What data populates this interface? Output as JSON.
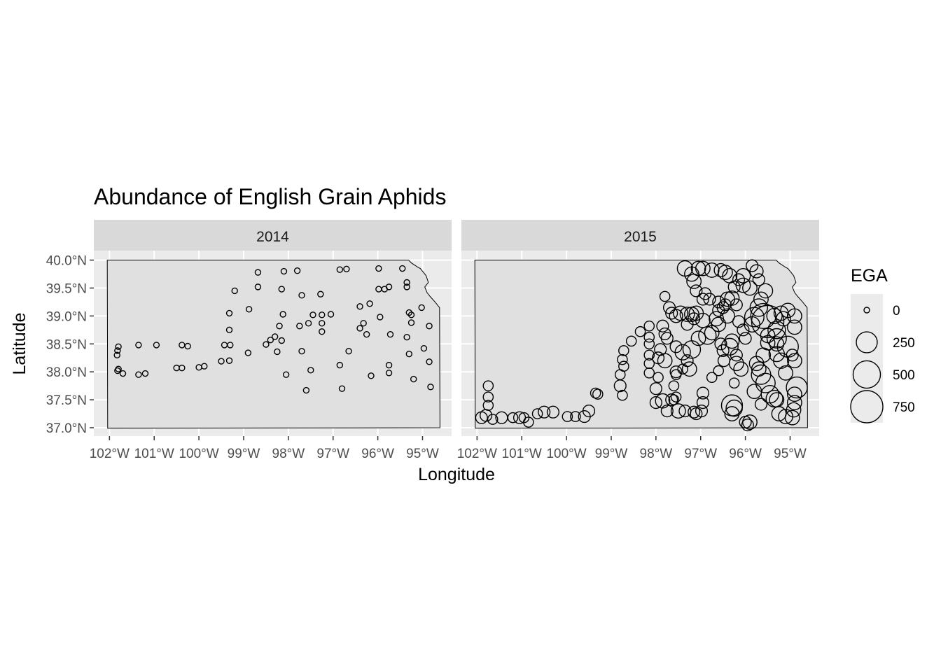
{
  "chart_data": {
    "type": "scatter",
    "title": "Abundance of English Grain Aphids",
    "xlabel": "Longitude",
    "ylabel": "Latitude",
    "x_ticks": [
      -102,
      -101,
      -100,
      -99,
      -98,
      -97,
      -96,
      -95
    ],
    "x_tick_labels": [
      "102°W",
      "101°W",
      "100°W",
      "99°W",
      "98°W",
      "97°W",
      "96°W",
      "95°W"
    ],
    "y_ticks": [
      37.0,
      37.5,
      38.0,
      38.5,
      39.0,
      39.5,
      40.0
    ],
    "y_tick_labels": [
      "37.0°N",
      "37.5°N",
      "38.0°N",
      "38.5°N",
      "39.0°N",
      "39.5°N",
      "40.0°N"
    ],
    "xlim": [
      -102.35,
      -94.35
    ],
    "ylim": [
      36.85,
      40.17
    ],
    "size_variable": "EGA",
    "legend": {
      "title": "EGA",
      "position": "right",
      "breaks": [
        0,
        250,
        500,
        750
      ],
      "labels": [
        "0",
        "250",
        "500",
        "750"
      ]
    },
    "panels": [
      {
        "label": "2014",
        "points": [
          [
            -101.8,
            38.45
          ],
          [
            -101.82,
            38.38
          ],
          [
            -101.83,
            38.3
          ],
          [
            -101.8,
            38.05
          ],
          [
            -101.82,
            38.02
          ],
          [
            -101.7,
            37.97
          ],
          [
            -101.35,
            38.48
          ],
          [
            -101.35,
            37.95
          ],
          [
            -101.2,
            37.97
          ],
          [
            -100.95,
            38.48
          ],
          [
            -100.38,
            38.48
          ],
          [
            -100.25,
            38.46
          ],
          [
            -100.5,
            38.07
          ],
          [
            -100.38,
            38.07
          ],
          [
            -100.0,
            38.08
          ],
          [
            -99.88,
            38.1
          ],
          [
            -99.5,
            38.19
          ],
          [
            -99.43,
            38.48
          ],
          [
            -99.32,
            38.2
          ],
          [
            -99.3,
            38.48
          ],
          [
            -99.32,
            38.75
          ],
          [
            -99.32,
            39.05
          ],
          [
            -99.2,
            39.45
          ],
          [
            -98.88,
            39.12
          ],
          [
            -98.9,
            38.34
          ],
          [
            -98.68,
            39.78
          ],
          [
            -98.68,
            39.52
          ],
          [
            -98.5,
            38.49
          ],
          [
            -98.4,
            38.57
          ],
          [
            -98.3,
            38.63
          ],
          [
            -98.25,
            38.36
          ],
          [
            -98.2,
            38.82
          ],
          [
            -98.15,
            38.56
          ],
          [
            -98.15,
            39.48
          ],
          [
            -98.12,
            39.03
          ],
          [
            -98.1,
            39.8
          ],
          [
            -98.05,
            37.95
          ],
          [
            -97.8,
            39.81
          ],
          [
            -97.75,
            38.82
          ],
          [
            -97.7,
            39.37
          ],
          [
            -97.7,
            38.37
          ],
          [
            -97.6,
            37.67
          ],
          [
            -97.55,
            38.87
          ],
          [
            -97.5,
            38.03
          ],
          [
            -97.45,
            39.02
          ],
          [
            -97.25,
            38.72
          ],
          [
            -97.25,
            38.87
          ],
          [
            -97.25,
            39.02
          ],
          [
            -97.28,
            39.39
          ],
          [
            -97.05,
            39.03
          ],
          [
            -96.85,
            39.83
          ],
          [
            -96.85,
            38.12
          ],
          [
            -96.8,
            37.7
          ],
          [
            -96.7,
            39.84
          ],
          [
            -96.65,
            38.37
          ],
          [
            -96.4,
            38.78
          ],
          [
            -96.4,
            39.17
          ],
          [
            -96.32,
            38.87
          ],
          [
            -96.25,
            38.67
          ],
          [
            -96.18,
            39.22
          ],
          [
            -96.15,
            37.93
          ],
          [
            -95.98,
            39.85
          ],
          [
            -95.98,
            39.48
          ],
          [
            -95.95,
            38.98
          ],
          [
            -95.85,
            39.48
          ],
          [
            -95.75,
            39.52
          ],
          [
            -95.72,
            38.67
          ],
          [
            -95.75,
            38.12
          ],
          [
            -95.75,
            37.98
          ],
          [
            -95.45,
            39.85
          ],
          [
            -95.35,
            39.6
          ],
          [
            -95.35,
            39.52
          ],
          [
            -95.3,
            39.06
          ],
          [
            -95.25,
            38.88
          ],
          [
            -95.25,
            39.02
          ],
          [
            -95.35,
            38.62
          ],
          [
            -95.3,
            38.32
          ],
          [
            -95.2,
            37.87
          ],
          [
            -95.02,
            39.15
          ],
          [
            -94.97,
            38.42
          ],
          [
            -94.85,
            38.82
          ],
          [
            -94.85,
            38.18
          ],
          [
            -94.82,
            37.73
          ]
        ]
      },
      {
        "label": "2015",
        "points": [
          [
            -101.75,
            37.75,
            20
          ],
          [
            -101.75,
            37.55,
            20
          ],
          [
            -101.75,
            37.4,
            20
          ],
          [
            -101.8,
            37.22,
            40
          ],
          [
            -101.9,
            37.18,
            40
          ],
          [
            -101.65,
            37.15,
            20
          ],
          [
            -101.45,
            37.18,
            40
          ],
          [
            -101.2,
            37.18,
            20
          ],
          [
            -101.05,
            37.18,
            40
          ],
          [
            -100.95,
            37.18,
            20
          ],
          [
            -100.85,
            37.1,
            20
          ],
          [
            -100.65,
            37.25,
            20
          ],
          [
            -100.5,
            37.28,
            40
          ],
          [
            -100.3,
            37.28,
            40
          ],
          [
            -99.98,
            37.2,
            20
          ],
          [
            -99.8,
            37.2,
            20
          ],
          [
            -99.6,
            37.2,
            40
          ],
          [
            -99.5,
            37.3,
            40
          ],
          [
            -99.3,
            37.6,
            20
          ],
          [
            -99.35,
            37.62,
            20
          ],
          [
            -98.75,
            37.58,
            20
          ],
          [
            -98.8,
            37.75,
            40
          ],
          [
            -98.8,
            37.95,
            20
          ],
          [
            -98.72,
            38.1,
            20
          ],
          [
            -98.75,
            38.22,
            20
          ],
          [
            -98.72,
            38.38,
            20
          ],
          [
            -98.55,
            38.55,
            20
          ],
          [
            -98.35,
            38.72,
            20
          ],
          [
            -98.15,
            38.82,
            20
          ],
          [
            -98.15,
            38.62,
            20
          ],
          [
            -98.15,
            38.5,
            20
          ],
          [
            -98.15,
            38.3,
            20
          ],
          [
            -98.15,
            38.15,
            20
          ],
          [
            -98.15,
            37.98,
            20
          ],
          [
            -98.0,
            37.45,
            40
          ],
          [
            -97.85,
            37.48,
            80
          ],
          [
            -97.75,
            37.3,
            40
          ],
          [
            -97.6,
            37.5,
            20
          ],
          [
            -97.55,
            37.55,
            20
          ],
          [
            -97.5,
            37.3,
            80
          ],
          [
            -97.35,
            37.3,
            40
          ],
          [
            -97.15,
            37.28,
            40
          ],
          [
            -97.1,
            37.25,
            40
          ],
          [
            -96.98,
            37.3,
            40
          ],
          [
            -96.95,
            37.45,
            40
          ],
          [
            -96.95,
            37.62,
            40
          ],
          [
            -96.75,
            37.9,
            20
          ],
          [
            -96.6,
            38.02,
            20
          ],
          [
            -96.5,
            38.38,
            40
          ],
          [
            -96.48,
            38.2,
            40
          ],
          [
            -96.25,
            37.8,
            20
          ],
          [
            -96.3,
            37.25,
            80
          ],
          [
            -96.3,
            37.4,
            250
          ],
          [
            -96.25,
            37.35,
            120
          ],
          [
            -96.0,
            37.1,
            40
          ],
          [
            -95.95,
            37.05,
            40
          ],
          [
            -95.9,
            37.1,
            80
          ],
          [
            -95.8,
            37.65,
            80
          ],
          [
            -95.65,
            37.42,
            40
          ],
          [
            -95.45,
            37.6,
            150
          ],
          [
            -95.35,
            37.52,
            130
          ],
          [
            -95.3,
            37.5,
            80
          ],
          [
            -95.25,
            37.25,
            80
          ],
          [
            -95.1,
            37.2,
            80
          ],
          [
            -94.95,
            37.18,
            80
          ],
          [
            -94.92,
            37.32,
            80
          ],
          [
            -94.9,
            37.45,
            80
          ],
          [
            -94.9,
            37.6,
            80
          ],
          [
            -94.85,
            37.72,
            250
          ],
          [
            -95.1,
            37.98,
            80
          ],
          [
            -95.2,
            38.2,
            100
          ],
          [
            -95.3,
            38.32,
            100
          ],
          [
            -95.3,
            38.5,
            80
          ],
          [
            -94.95,
            38.3,
            40
          ],
          [
            -94.9,
            38.2,
            80
          ],
          [
            -95.05,
            38.45,
            250
          ],
          [
            -95.3,
            38.6,
            200
          ],
          [
            -95.3,
            38.75,
            150
          ],
          [
            -95.5,
            38.9,
            750
          ],
          [
            -95.6,
            39.0,
            400
          ],
          [
            -95.7,
            39.15,
            150
          ],
          [
            -95.35,
            39.0,
            100
          ],
          [
            -95.2,
            39.05,
            80
          ],
          [
            -95.15,
            38.95,
            80
          ],
          [
            -94.9,
            38.8,
            80
          ],
          [
            -94.9,
            39.0,
            80
          ],
          [
            -95.05,
            39.1,
            80
          ],
          [
            -95.65,
            39.3,
            80
          ],
          [
            -95.55,
            39.45,
            80
          ],
          [
            -95.7,
            39.65,
            40
          ],
          [
            -95.75,
            39.8,
            60
          ],
          [
            -95.85,
            39.9,
            40
          ],
          [
            -95.9,
            39.5,
            80
          ],
          [
            -96.05,
            39.55,
            80
          ],
          [
            -96.05,
            39.72,
            80
          ],
          [
            -96.15,
            39.65,
            40
          ],
          [
            -96.25,
            39.52,
            40
          ],
          [
            -96.35,
            39.72,
            80
          ],
          [
            -96.45,
            39.78,
            80
          ],
          [
            -96.55,
            39.82,
            60
          ],
          [
            -96.75,
            39.82,
            80
          ],
          [
            -96.3,
            39.32,
            80
          ],
          [
            -96.45,
            39.2,
            40
          ],
          [
            -96.5,
            39.15,
            40
          ],
          [
            -96.65,
            38.95,
            80
          ],
          [
            -96.6,
            38.85,
            80
          ],
          [
            -96.55,
            38.5,
            40
          ],
          [
            -96.3,
            38.55,
            80
          ],
          [
            -96.35,
            38.45,
            130
          ],
          [
            -96.2,
            38.3,
            40
          ],
          [
            -96.2,
            38.15,
            80
          ],
          [
            -96.1,
            38.05,
            80
          ],
          [
            -95.75,
            38.15,
            80
          ],
          [
            -95.7,
            38.05,
            80
          ],
          [
            -95.65,
            37.95,
            200
          ],
          [
            -95.55,
            37.8,
            200
          ],
          [
            -95.6,
            38.3,
            80
          ],
          [
            -95.5,
            38.52,
            80
          ],
          [
            -95.5,
            38.65,
            80
          ],
          [
            -95.8,
            38.98,
            200
          ],
          [
            -95.85,
            38.85,
            100
          ],
          [
            -96.0,
            38.6,
            40
          ],
          [
            -96.05,
            38.75,
            40
          ],
          [
            -96.15,
            38.9,
            40
          ],
          [
            -96.2,
            39.2,
            40
          ],
          [
            -96.4,
            39.0,
            80
          ],
          [
            -96.4,
            39.3,
            80
          ],
          [
            -96.6,
            39.25,
            40
          ],
          [
            -96.6,
            39.1,
            40
          ],
          [
            -96.8,
            39.3,
            40
          ],
          [
            -96.9,
            39.4,
            40
          ],
          [
            -96.95,
            39.3,
            40
          ],
          [
            -97.1,
            39.45,
            40
          ],
          [
            -97.15,
            39.62,
            80
          ],
          [
            -97.2,
            39.75,
            80
          ],
          [
            -97.35,
            39.85,
            100
          ],
          [
            -97.05,
            39.85,
            80
          ],
          [
            -96.95,
            39.85,
            80
          ],
          [
            -97.1,
            39.05,
            80
          ],
          [
            -97.2,
            39.03,
            80
          ],
          [
            -97.3,
            39.03,
            80
          ],
          [
            -97.45,
            39.05,
            80
          ],
          [
            -97.55,
            39.0,
            60
          ],
          [
            -97.65,
            39.05,
            40
          ],
          [
            -97.7,
            39.15,
            40
          ],
          [
            -97.8,
            39.35,
            20
          ],
          [
            -97.85,
            38.82,
            40
          ],
          [
            -97.8,
            38.68,
            40
          ],
          [
            -97.75,
            38.6,
            40
          ],
          [
            -97.9,
            38.4,
            40
          ],
          [
            -97.95,
            38.25,
            40
          ],
          [
            -97.95,
            37.9,
            20
          ],
          [
            -98.0,
            37.7,
            40
          ],
          [
            -97.65,
            37.5,
            40
          ],
          [
            -97.6,
            37.75,
            20
          ],
          [
            -97.55,
            37.95,
            20
          ],
          [
            -97.4,
            38.05,
            20
          ],
          [
            -97.3,
            38.2,
            40
          ],
          [
            -97.2,
            38.4,
            150
          ],
          [
            -97.05,
            38.6,
            80
          ],
          [
            -96.85,
            38.65,
            150
          ],
          [
            -96.75,
            38.7,
            80
          ],
          [
            -96.95,
            38.92,
            80
          ],
          [
            -97.15,
            38.95,
            40
          ],
          [
            -97.3,
            38.85,
            40
          ],
          [
            -97.55,
            38.45,
            40
          ],
          [
            -97.4,
            38.35,
            100
          ],
          [
            -97.8,
            38.2,
            80
          ],
          [
            -97.25,
            38.05,
            80
          ],
          [
            -97.55,
            38.0,
            40
          ]
        ]
      }
    ]
  }
}
